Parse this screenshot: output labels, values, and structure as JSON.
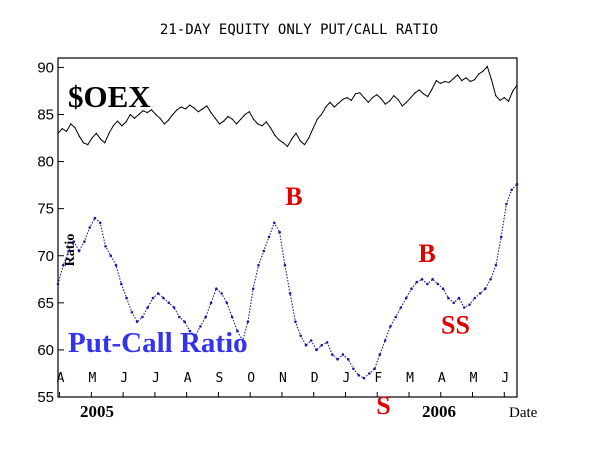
{
  "chart_data": {
    "type": "line",
    "title": "21-DAY EQUITY ONLY PUT/CALL RATIO",
    "ylabel": "Ratio",
    "xlabel": "Date",
    "ylim": [
      55,
      91
    ],
    "yticks": [
      55,
      60,
      65,
      70,
      75,
      80,
      85,
      90
    ],
    "month_labels": [
      "A",
      "M",
      "J",
      "J",
      "A",
      "S",
      "O",
      "N",
      "D",
      "J",
      "F",
      "M",
      "A",
      "M",
      "J"
    ],
    "year_labels": [
      "2005",
      "2006"
    ],
    "colors": {
      "ratio": "#1a1aa0",
      "oex": "#000000",
      "signal": "#e00000",
      "label_blue": "#3333ee"
    },
    "series": [
      {
        "name": "$OEX",
        "values": [
          83.0,
          83.5,
          83.2,
          84.0,
          83.6,
          82.7,
          82.0,
          81.8,
          82.5,
          83.0,
          82.4,
          82.0,
          83.0,
          83.8,
          84.3,
          83.8,
          84.2,
          85.0,
          84.6,
          85.0,
          85.4,
          85.2,
          85.5,
          85.0,
          84.6,
          84.0,
          84.4,
          85.0,
          85.5,
          85.8,
          85.6,
          86.0,
          85.7,
          85.3,
          85.6,
          85.9,
          85.2,
          84.6,
          84.0,
          84.3,
          84.8,
          84.5,
          84.0,
          84.5,
          85.0,
          85.3,
          84.5,
          84.0,
          83.8,
          84.2,
          83.6,
          82.8,
          82.3,
          82.0,
          81.6,
          82.4,
          83.0,
          82.2,
          81.8,
          82.5,
          83.5,
          84.5,
          85.0,
          85.8,
          86.3,
          85.8,
          86.2,
          86.6,
          86.8,
          86.5,
          87.2,
          87.3,
          86.8,
          86.3,
          86.8,
          87.1,
          86.7,
          86.1,
          86.4,
          87.0,
          86.6,
          85.9,
          86.3,
          86.8,
          87.3,
          87.6,
          87.2,
          86.9,
          87.7,
          88.6,
          88.3,
          88.5,
          88.4,
          88.8,
          89.2,
          88.6,
          88.9,
          88.5,
          88.7,
          89.3,
          89.6,
          90.1,
          88.7,
          87.0,
          86.5,
          86.8,
          86.4,
          87.5,
          88.1
        ],
        "x_range": [
          0,
          1
        ]
      },
      {
        "name": "Put-Call Ratio",
        "values": [
          67.0,
          69.0,
          70.5,
          71.5,
          70.5,
          71.5,
          73.0,
          74.0,
          73.5,
          71.0,
          70.0,
          69.0,
          67.0,
          65.5,
          64.0,
          63.0,
          63.5,
          64.5,
          65.5,
          66.0,
          65.5,
          65.0,
          64.5,
          63.5,
          63.0,
          62.0,
          61.5,
          62.5,
          63.5,
          65.0,
          66.5,
          66.0,
          65.0,
          63.5,
          62.0,
          61.0,
          63.0,
          66.5,
          69.0,
          70.5,
          72.0,
          73.5,
          72.5,
          69.0,
          66.0,
          63.0,
          61.5,
          60.5,
          61.0,
          60.0,
          60.5,
          60.8,
          59.5,
          59.0,
          59.5,
          59.0,
          58.0,
          57.3,
          57.0,
          57.5,
          58.0,
          59.5,
          61.0,
          62.5,
          63.5,
          64.5,
          65.5,
          66.5,
          67.2,
          67.5,
          67.0,
          67.5,
          67.0,
          66.5,
          65.5,
          65.0,
          65.5,
          64.5,
          64.8,
          65.5,
          66.0,
          66.5,
          67.5,
          69.0,
          72.0,
          75.5,
          77.0,
          77.6
        ],
        "x_range": [
          0,
          1
        ]
      }
    ],
    "annotations": [
      {
        "text": "B",
        "x": 0.514,
        "y": 73.5,
        "color": "#e00000"
      },
      {
        "text": "S",
        "x": 0.709,
        "y": 57.0,
        "color": "#e00000"
      },
      {
        "text": "B",
        "x": 0.804,
        "y": 67.4,
        "color": "#e00000"
      },
      {
        "text": "SS",
        "x": 0.866,
        "y": 64.5,
        "color": "#e00000"
      }
    ],
    "series_labels": {
      "oex": "$OEX",
      "ratio": "Put-Call Ratio"
    }
  }
}
